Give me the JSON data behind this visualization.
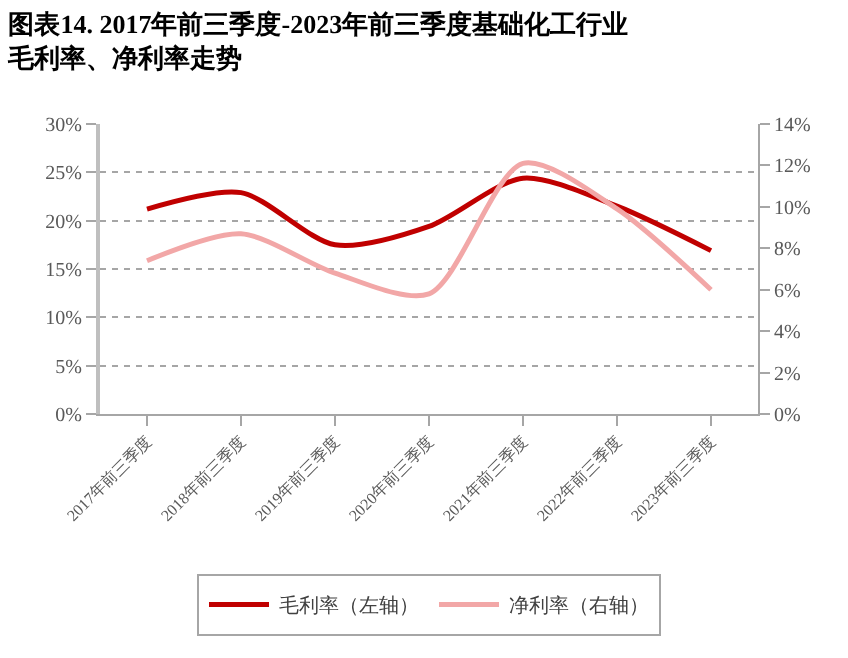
{
  "chart_data": {
    "type": "line",
    "title": "图表14. 2017年前三季度-2023年前三季度基础化工行业毛利率、净利率走势",
    "categories": [
      "2017年前三季度",
      "2018年前三季度",
      "2019年前三季度",
      "2020年前三季度",
      "2021年前三季度",
      "2022年前三季度",
      "2023年前三季度"
    ],
    "series": [
      {
        "name": "毛利率（左轴）",
        "color": "#c00000",
        "values": [
          21.2,
          22.9,
          17.5,
          19.4,
          24.4,
          21.5,
          16.9
        ]
      },
      {
        "name": "净利率（右轴）",
        "color": "#f2a7a7",
        "axis": "y2",
        "values": [
          7.4,
          8.7,
          6.8,
          5.8,
          12.1,
          9.9,
          6.0
        ]
      }
    ],
    "ylim": [
      0,
      30
    ],
    "yticks": [
      {
        "value": 0,
        "label": "0%"
      },
      {
        "value": 5,
        "label": "5%"
      },
      {
        "value": 10,
        "label": "10%"
      },
      {
        "value": 15,
        "label": "15%"
      },
      {
        "value": 20,
        "label": "20%"
      },
      {
        "value": 25,
        "label": "25%"
      },
      {
        "value": 30,
        "label": "30%"
      }
    ],
    "y2lim": [
      0,
      14
    ],
    "y2ticks": [
      {
        "value": 0,
        "label": "0%"
      },
      {
        "value": 2,
        "label": "2%"
      },
      {
        "value": 4,
        "label": "4%"
      },
      {
        "value": 6,
        "label": "6%"
      },
      {
        "value": 8,
        "label": "8%"
      },
      {
        "value": 10,
        "label": "10%"
      },
      {
        "value": 12,
        "label": "12%"
      },
      {
        "value": 14,
        "label": "14%"
      }
    ],
    "grid": "y",
    "legend": "bottom",
    "marker": "none",
    "line_style": "solid"
  }
}
